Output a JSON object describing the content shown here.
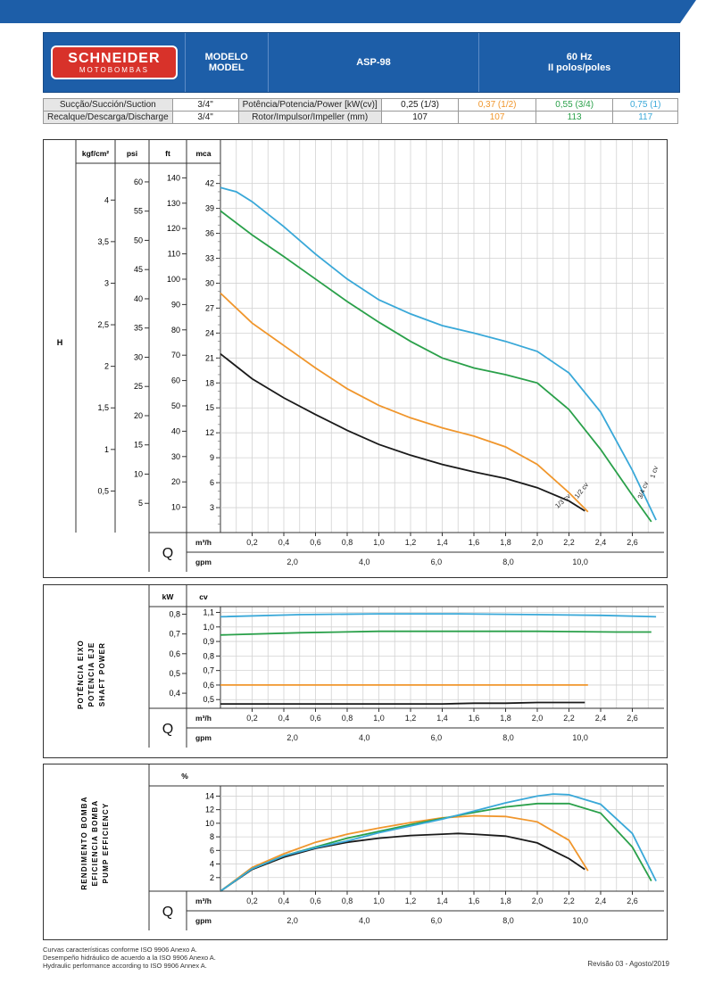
{
  "header": {
    "brand_main": "SCHNEIDER",
    "brand_sub": "MOTOBOMBAS",
    "model_label_1": "MODELO",
    "model_label_2": "MODEL",
    "model": "ASP-98",
    "freq": "60 Hz",
    "poles": "II polos/poles"
  },
  "specs": {
    "suction_label": "Sucção/Succión/Suction",
    "suction": "3/4\"",
    "discharge_label": "Recalque/Descarga/Discharge",
    "discharge": "3/4\"",
    "power_label": "Potência/Potencia/Power [kW(cv)]",
    "impeller_label": "Rotor/Impulsor/Impeller (mm)",
    "powers": [
      "0,25 (1/3)",
      "0,37 (1/2)",
      "0,55 (3/4)",
      "0,75 (1)"
    ],
    "impellers": [
      "107",
      "107",
      "113",
      "117"
    ]
  },
  "colors": {
    "header_blue": "#1d5ea8",
    "black": "#1a1a1a",
    "orange": "#f0962c",
    "green": "#2aa04a",
    "blue": "#39a8d8"
  },
  "chart_data": [
    {
      "type": "line",
      "title": "",
      "ylabel": "H",
      "xlabel": "Q",
      "x_units": "m³/h",
      "xlim": [
        0,
        2.8
      ],
      "ylim": [
        0,
        44
      ],
      "y_units": [
        "kgf/cm²",
        "psi",
        "ft",
        "mca"
      ],
      "x_ticks": [
        "0,2",
        "0,4",
        "0,6",
        "0,8",
        "1,0",
        "1,2",
        "1,4",
        "1,6",
        "1,8",
        "2,0",
        "2,2",
        "2,4",
        "2,6"
      ],
      "gpm_ticks": [
        "2,0",
        "4,0",
        "6,0",
        "8,0",
        "10,0"
      ],
      "mca_ticks": [
        "3",
        "6",
        "9",
        "12",
        "15",
        "18",
        "21",
        "24",
        "27",
        "30",
        "33",
        "36",
        "39",
        "42"
      ],
      "ft_ticks": [
        "10",
        "20",
        "30",
        "40",
        "50",
        "60",
        "70",
        "80",
        "90",
        "100",
        "110",
        "120",
        "130",
        "140"
      ],
      "psi_ticks": [
        "5",
        "10",
        "15",
        "20",
        "25",
        "30",
        "35",
        "40",
        "45",
        "50",
        "55",
        "60"
      ],
      "kgf_ticks": [
        "0,5",
        "1",
        "1,5",
        "2",
        "2,5",
        "3",
        "3,5",
        "4"
      ],
      "series": [
        {
          "name": "1/3 cv",
          "color": "black",
          "x": [
            0,
            0.2,
            0.4,
            0.6,
            0.8,
            1.0,
            1.2,
            1.4,
            1.6,
            1.8,
            2.0,
            2.2,
            2.3
          ],
          "y": [
            21.5,
            18.5,
            16.2,
            14.2,
            12.3,
            10.6,
            9.3,
            8.2,
            7.3,
            6.5,
            5.4,
            3.8,
            2.6
          ]
        },
        {
          "name": "1/2 cv",
          "color": "orange",
          "x": [
            0,
            0.2,
            0.4,
            0.6,
            0.8,
            1.0,
            1.2,
            1.4,
            1.6,
            1.8,
            2.0,
            2.2,
            2.32
          ],
          "y": [
            28.8,
            25.2,
            22.5,
            19.8,
            17.3,
            15.3,
            13.8,
            12.6,
            11.6,
            10.3,
            8.2,
            4.8,
            2.5
          ]
        },
        {
          "name": "3/4 cv",
          "color": "green",
          "x": [
            0,
            0.2,
            0.4,
            0.6,
            0.8,
            1.0,
            1.2,
            1.4,
            1.6,
            1.8,
            2.0,
            2.2,
            2.4,
            2.6,
            2.72
          ],
          "y": [
            38.7,
            35.8,
            33.2,
            30.5,
            27.8,
            25.3,
            23.0,
            21.0,
            19.8,
            19.0,
            18.0,
            14.8,
            10.0,
            4.5,
            1.3
          ]
        },
        {
          "name": "1 cv",
          "color": "blue",
          "x": [
            0,
            0.1,
            0.2,
            0.4,
            0.6,
            0.8,
            1.0,
            1.2,
            1.4,
            1.6,
            1.8,
            2.0,
            2.2,
            2.4,
            2.6,
            2.75
          ],
          "y": [
            41.5,
            41.0,
            39.8,
            36.8,
            33.5,
            30.5,
            28.0,
            26.3,
            24.9,
            24.0,
            23.0,
            21.8,
            19.2,
            14.5,
            7.5,
            1.5
          ]
        }
      ]
    },
    {
      "type": "line",
      "title": "",
      "ylabel_lines": [
        "POTÊNCIA EIXO",
        "POTENCIA EJE",
        "SHAFT POWER"
      ],
      "xlabel": "Q",
      "x_units": "m³/h",
      "xlim": [
        0,
        2.8
      ],
      "ylim": [
        0.44,
        1.14
      ],
      "y_units": [
        "kW",
        "cv"
      ],
      "kw_ticks": [
        "0,4",
        "0,5",
        "0,6",
        "0,7",
        "0,8"
      ],
      "cv_ticks": [
        "0,5",
        "0,6",
        "0,7",
        "0,8",
        "0,9",
        "1,0",
        "1,1"
      ],
      "x_ticks": [
        "0,2",
        "0,4",
        "0,6",
        "0,8",
        "1,0",
        "1,2",
        "1,4",
        "1,6",
        "1,8",
        "2,0",
        "2,2",
        "2,4",
        "2,6"
      ],
      "gpm_ticks": [
        "2,0",
        "4,0",
        "6,0",
        "8,0",
        "10,0"
      ],
      "series": [
        {
          "name": "1/3 cv",
          "color": "black",
          "x": [
            0,
            0.5,
            1.0,
            1.4,
            1.6,
            1.8,
            2.0,
            2.2,
            2.3
          ],
          "y": [
            0.47,
            0.47,
            0.47,
            0.47,
            0.475,
            0.475,
            0.48,
            0.48,
            0.48
          ]
        },
        {
          "name": "1/2 cv",
          "color": "orange",
          "x": [
            0,
            0.5,
            1.0,
            1.5,
            2.0,
            2.32
          ],
          "y": [
            0.6,
            0.6,
            0.6,
            0.6,
            0.6,
            0.6
          ]
        },
        {
          "name": "3/4 cv",
          "color": "green",
          "x": [
            0,
            0.5,
            1.0,
            1.5,
            2.0,
            2.5,
            2.72
          ],
          "y": [
            0.945,
            0.96,
            0.97,
            0.97,
            0.97,
            0.965,
            0.965
          ]
        },
        {
          "name": "1 cv",
          "color": "blue",
          "x": [
            0,
            0.5,
            1.0,
            1.5,
            2.0,
            2.4,
            2.75
          ],
          "y": [
            1.07,
            1.085,
            1.09,
            1.09,
            1.085,
            1.08,
            1.07
          ]
        }
      ]
    },
    {
      "type": "line",
      "title": "",
      "ylabel_lines": [
        "RENDIMENTO BOMBA",
        "EFICIENCIA BOMBA",
        "PUMP EFFICIENCY"
      ],
      "xlabel": "Q",
      "x_units": "m³/h",
      "xlim": [
        0,
        2.8
      ],
      "ylim": [
        0,
        15.5
      ],
      "y_units": [
        "%"
      ],
      "y_ticks": [
        "2",
        "4",
        "6",
        "8",
        "10",
        "12",
        "14"
      ],
      "x_ticks": [
        "0,2",
        "0,4",
        "0,6",
        "0,8",
        "1,0",
        "1,2",
        "1,4",
        "1,6",
        "1,8",
        "2,0",
        "2,2",
        "2,4",
        "2,6"
      ],
      "gpm_ticks": [
        "2,0",
        "4,0",
        "6,0",
        "8,0",
        "10,0"
      ],
      "series": [
        {
          "name": "1/3 cv",
          "color": "black",
          "x": [
            0,
            0.2,
            0.4,
            0.6,
            0.8,
            1.0,
            1.2,
            1.4,
            1.5,
            1.6,
            1.8,
            2.0,
            2.2,
            2.3
          ],
          "y": [
            0,
            3.2,
            5.0,
            6.3,
            7.2,
            7.8,
            8.2,
            8.4,
            8.5,
            8.4,
            8.1,
            7.1,
            4.8,
            3.2
          ]
        },
        {
          "name": "1/2 cv",
          "color": "orange",
          "x": [
            0,
            0.2,
            0.4,
            0.6,
            0.8,
            1.0,
            1.2,
            1.4,
            1.6,
            1.8,
            2.0,
            2.2,
            2.32
          ],
          "y": [
            0,
            3.5,
            5.5,
            7.2,
            8.4,
            9.3,
            10.1,
            10.8,
            11.1,
            11.0,
            10.2,
            7.5,
            3.0
          ]
        },
        {
          "name": "3/4 cv",
          "color": "green",
          "x": [
            0,
            0.2,
            0.4,
            0.6,
            0.8,
            1.0,
            1.2,
            1.4,
            1.6,
            1.8,
            2.0,
            2.2,
            2.4,
            2.6,
            2.72
          ],
          "y": [
            0,
            3.3,
            5.2,
            6.5,
            7.8,
            8.8,
            9.8,
            10.7,
            11.6,
            12.4,
            12.9,
            12.9,
            11.5,
            6.5,
            1.5
          ]
        },
        {
          "name": "1 cv",
          "color": "blue",
          "x": [
            0,
            0.2,
            0.4,
            0.6,
            0.8,
            1.0,
            1.2,
            1.4,
            1.6,
            1.8,
            2.0,
            2.1,
            2.2,
            2.4,
            2.6,
            2.75
          ],
          "y": [
            0,
            3.3,
            5.2,
            6.4,
            7.4,
            8.6,
            9.6,
            10.6,
            11.8,
            13.0,
            14.0,
            14.3,
            14.2,
            12.8,
            8.5,
            1.5
          ]
        }
      ]
    }
  ],
  "footer": {
    "line1": "Curvas características conforme ISO 9906 Anexo A.",
    "line2": "Desempeño hidráulico de acuerdo a la ISO 9906 Anexo A.",
    "line3": "Hydraulic performance according to ISO 9906 Annex A.",
    "revision": "Revisão 03 - Agosto/2019"
  }
}
